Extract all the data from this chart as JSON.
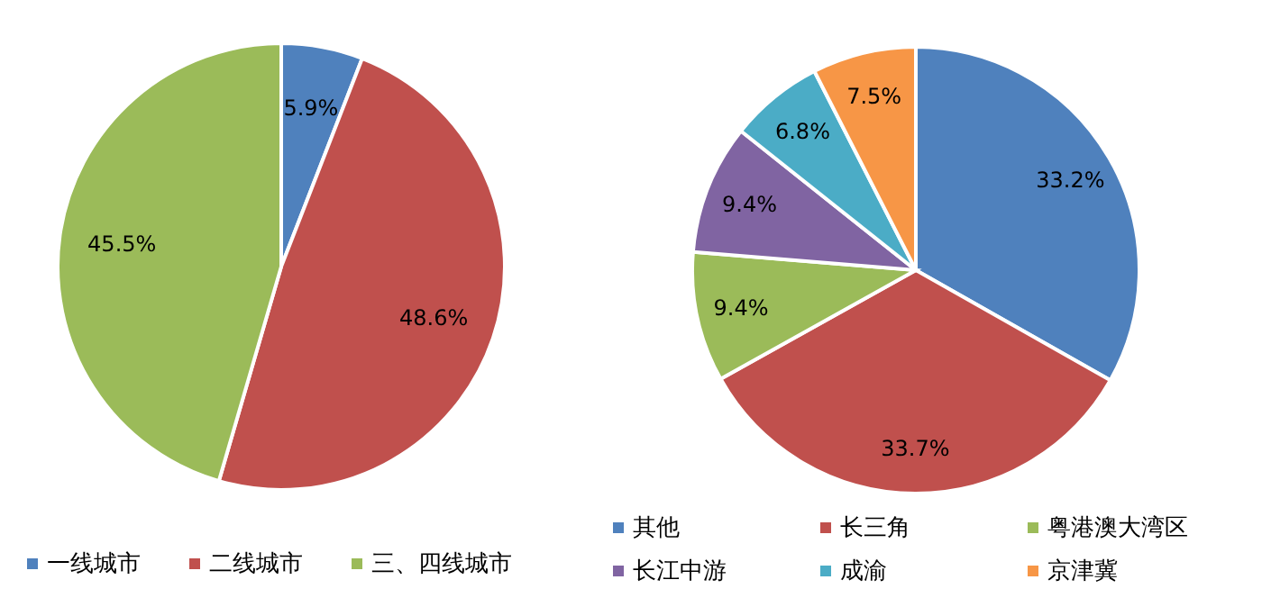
{
  "chart_data": [
    {
      "type": "pie",
      "categories": [
        "一线城市",
        "二线城市",
        "三、四线城市"
      ],
      "values": [
        5.9,
        48.6,
        45.5
      ],
      "value_labels": [
        "5.9%",
        "48.6%",
        "45.5%"
      ],
      "colors": [
        "#4f81bd",
        "#c0504d",
        "#9bbb59"
      ],
      "legend": "bottom"
    },
    {
      "type": "pie",
      "categories": [
        "其他",
        "长三角",
        "粤港澳大湾区",
        "长江中游",
        "成渝",
        "京津冀"
      ],
      "values": [
        33.2,
        33.7,
        9.4,
        9.4,
        6.8,
        7.5
      ],
      "value_labels": [
        "33.2%",
        "33.7%",
        "9.4%",
        "9.4%",
        "6.8%",
        "7.5%"
      ],
      "colors": [
        "#4f81bd",
        "#c0504d",
        "#9bbb59",
        "#8064a2",
        "#4bacc6",
        "#f79646"
      ],
      "legend": "bottom"
    }
  ]
}
